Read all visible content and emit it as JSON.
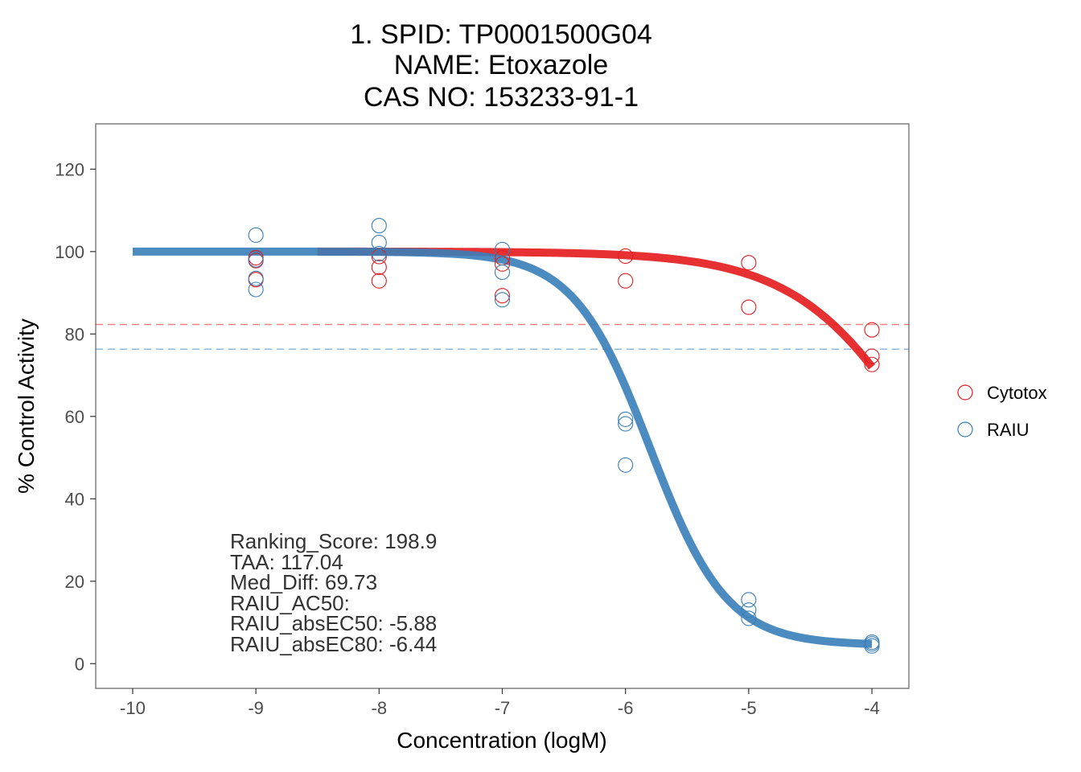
{
  "chart_data": {
    "type": "scatter",
    "title_lines": [
      "1. SPID: TP0001500G04",
      "NAME: Etoxazole",
      "CAS NO: 153233-91-1"
    ],
    "xlabel": "Concentration (logM)",
    "ylabel": "% Control Activity",
    "xlim": [
      -10.3,
      -3.7
    ],
    "ylim": [
      -6,
      131
    ],
    "x_ticks": [
      -10,
      -9,
      -8,
      -7,
      -6,
      -5,
      -4
    ],
    "y_ticks": [
      0,
      20,
      40,
      60,
      80,
      100,
      120
    ],
    "grid": false,
    "legend_position": "right",
    "series": [
      {
        "name": "Cytotox",
        "color": "#e41a1c",
        "points": [
          {
            "x": -9,
            "y": 98.5
          },
          {
            "x": -9,
            "y": 97.8
          },
          {
            "x": -9,
            "y": 93.2
          },
          {
            "x": -8,
            "y": 98.8
          },
          {
            "x": -8,
            "y": 96.2
          },
          {
            "x": -8,
            "y": 92.9
          },
          {
            "x": -7,
            "y": 98.5
          },
          {
            "x": -7,
            "y": 97.0
          },
          {
            "x": -7,
            "y": 89.3
          },
          {
            "x": -6,
            "y": 98.9
          },
          {
            "x": -6,
            "y": 92.9
          },
          {
            "x": -5,
            "y": 97.3
          },
          {
            "x": -5,
            "y": 86.5
          },
          {
            "x": -4,
            "y": 81.0
          },
          {
            "x": -4,
            "y": 74.6
          },
          {
            "x": -4,
            "y": 72.6
          }
        ],
        "fit": {
          "top": 100,
          "bottom": 0,
          "log_ac50": -3.5,
          "hill": 0.82,
          "x_range": [
            -8.5,
            -4
          ]
        },
        "cutoff_line": 82.3
      },
      {
        "name": "RAIU",
        "color": "#377eb8",
        "points": [
          {
            "x": -9,
            "y": 104.0
          },
          {
            "x": -9,
            "y": 98.0
          },
          {
            "x": -9,
            "y": 93.5
          },
          {
            "x": -9,
            "y": 90.8
          },
          {
            "x": -8,
            "y": 106.3
          },
          {
            "x": -8,
            "y": 102.2
          },
          {
            "x": -8,
            "y": 99.5
          },
          {
            "x": -7,
            "y": 100.5
          },
          {
            "x": -7,
            "y": 95.0
          },
          {
            "x": -7,
            "y": 88.3
          },
          {
            "x": -6,
            "y": 59.3
          },
          {
            "x": -6,
            "y": 58.2
          },
          {
            "x": -6,
            "y": 48.2
          },
          {
            "x": -5,
            "y": 15.5
          },
          {
            "x": -5,
            "y": 13.0
          },
          {
            "x": -5,
            "y": 11.0
          },
          {
            "x": -4,
            "y": 5.2
          },
          {
            "x": -4,
            "y": 4.8
          },
          {
            "x": -4,
            "y": 4.3
          }
        ],
        "fit": {
          "top": 100,
          "bottom": 4.5,
          "log_ac50": -5.8,
          "hill": 1.4,
          "x_range": [
            -10,
            -4
          ]
        },
        "cutoff_line": 76.3
      }
    ],
    "annotations": [
      "Ranking_Score: 198.9",
      "TAA: 117.04",
      "Med_Diff: 69.73",
      "RAIU_AC50:",
      "RAIU_absEC50: -5.88",
      "RAIU_absEC80: -6.44"
    ]
  }
}
